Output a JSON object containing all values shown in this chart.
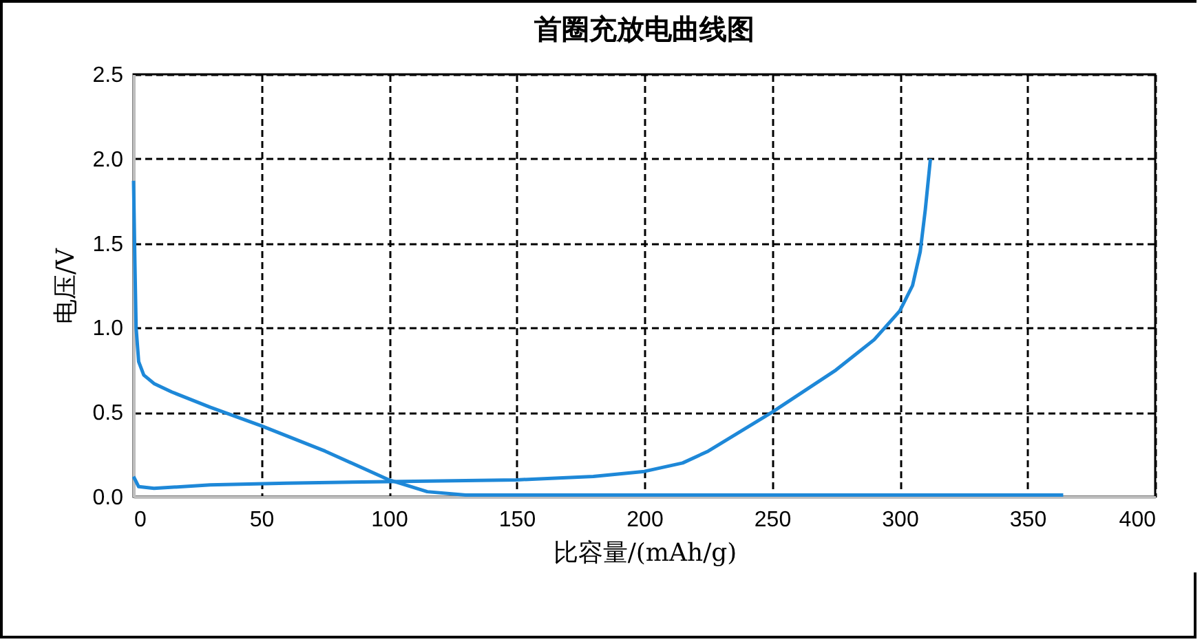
{
  "chart_data": {
    "type": "line",
    "title": "首圈充放电曲线图",
    "xlabel": "比容量/(mAh/g)",
    "ylabel": "电压/V",
    "xlim": [
      0,
      400
    ],
    "xticks": [
      0,
      50,
      100,
      150,
      200,
      250,
      300,
      350,
      400
    ],
    "ylim": [
      0,
      2.5
    ],
    "yticks": [
      {
        "value": 0,
        "label": "0.0"
      },
      {
        "value": 0.5,
        "label": "0.5"
      },
      {
        "value": 1,
        "label": "1.0"
      },
      {
        "value": 1.5,
        "label": "1.5"
      },
      {
        "value": 2,
        "label": "2.0"
      },
      {
        "value": 2.5,
        "label": "2.5"
      }
    ],
    "grid": true,
    "line_style": "solid",
    "marker": "none",
    "legend": false,
    "series": [
      {
        "color": "#1e88d8",
        "x": [
          0,
          0.5,
          1,
          2,
          4,
          8,
          15,
          30,
          50,
          75,
          100,
          115,
          130,
          150,
          200,
          250,
          300,
          364
        ],
        "values": [
          1.87,
          1.4,
          1.0,
          0.8,
          0.72,
          0.67,
          0.62,
          0.53,
          0.42,
          0.27,
          0.1,
          0.03,
          0.01,
          0.01,
          0.01,
          0.01,
          0.01,
          0.01
        ]
      },
      {
        "color": "#1e88d8",
        "x": [
          0,
          2,
          8,
          30,
          60,
          100,
          150,
          180,
          200,
          215,
          225,
          250,
          275,
          290,
          300,
          305,
          308,
          310,
          312
        ],
        "values": [
          0.12,
          0.06,
          0.05,
          0.07,
          0.08,
          0.09,
          0.1,
          0.12,
          0.15,
          0.2,
          0.27,
          0.5,
          0.75,
          0.93,
          1.1,
          1.25,
          1.45,
          1.7,
          2.0
        ]
      }
    ]
  }
}
